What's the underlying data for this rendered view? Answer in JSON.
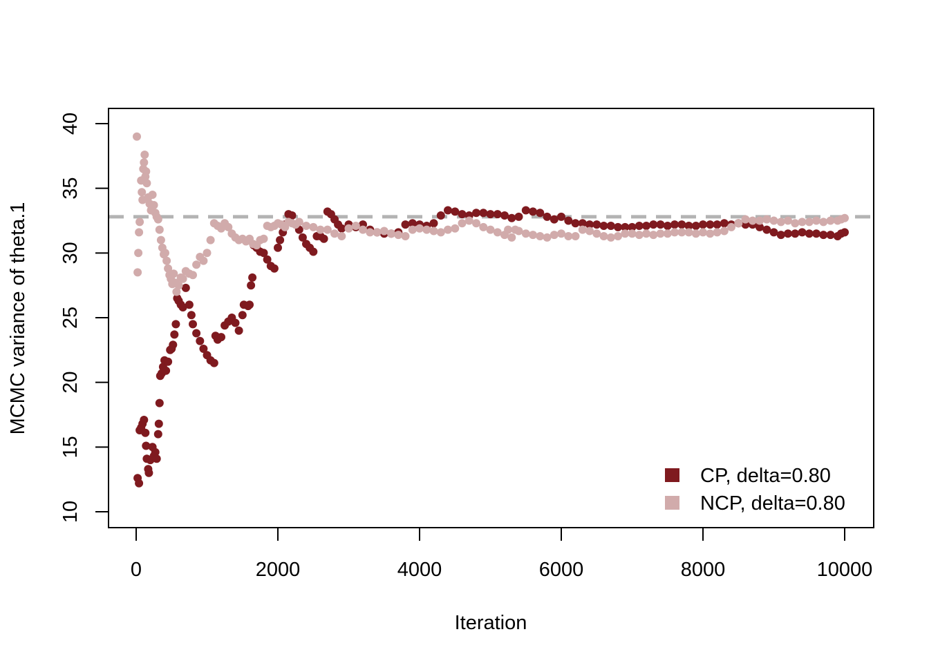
{
  "chart_data": {
    "type": "scatter",
    "title": "",
    "xlabel": "Iteration",
    "ylabel": "MCMC variance of theta.1",
    "xlim": [
      0,
      10000
    ],
    "ylim": [
      10,
      40
    ],
    "x_ticks": [
      "0",
      "2000",
      "4000",
      "6000",
      "8000",
      "10000"
    ],
    "y_ticks": [
      "10",
      "15",
      "20",
      "25",
      "30",
      "35",
      "40"
    ],
    "reference_line": {
      "y": 32.8,
      "style": "dashed",
      "color": "#b3b3b3"
    },
    "legend_position": "bottom-right",
    "grid": false,
    "series": [
      {
        "name": "CP, delta=0.80",
        "color": "#7f1a1f",
        "points": [
          [
            20,
            12.6
          ],
          [
            40,
            12.2
          ],
          [
            50,
            16.3
          ],
          [
            70,
            16.5
          ],
          [
            90,
            16.8
          ],
          [
            110,
            17.1
          ],
          [
            130,
            16.1
          ],
          [
            140,
            15.1
          ],
          [
            150,
            14.1
          ],
          [
            170,
            13.3
          ],
          [
            180,
            13.0
          ],
          [
            200,
            14.0
          ],
          [
            230,
            15.0
          ],
          [
            250,
            14.3
          ],
          [
            270,
            14.6
          ],
          [
            290,
            14.1
          ],
          [
            310,
            16.0
          ],
          [
            320,
            16.8
          ],
          [
            330,
            18.4
          ],
          [
            340,
            20.5
          ],
          [
            360,
            20.7
          ],
          [
            380,
            21.2
          ],
          [
            400,
            21.7
          ],
          [
            420,
            20.9
          ],
          [
            450,
            21.6
          ],
          [
            480,
            22.5
          ],
          [
            500,
            22.6
          ],
          [
            520,
            22.9
          ],
          [
            540,
            23.7
          ],
          [
            560,
            24.5
          ],
          [
            580,
            26.5
          ],
          [
            600,
            26.3
          ],
          [
            630,
            26.0
          ],
          [
            660,
            25.8
          ],
          [
            700,
            27.3
          ],
          [
            750,
            26.0
          ],
          [
            780,
            25.2
          ],
          [
            800,
            24.5
          ],
          [
            850,
            23.8
          ],
          [
            900,
            23.2
          ],
          [
            950,
            22.6
          ],
          [
            1000,
            22.1
          ],
          [
            1050,
            21.7
          ],
          [
            1100,
            21.5
          ],
          [
            1120,
            23.6
          ],
          [
            1150,
            23.3
          ],
          [
            1200,
            23.5
          ],
          [
            1250,
            24.4
          ],
          [
            1300,
            24.7
          ],
          [
            1350,
            25.0
          ],
          [
            1400,
            24.6
          ],
          [
            1450,
            24.0
          ],
          [
            1500,
            25.2
          ],
          [
            1520,
            26.0
          ],
          [
            1580,
            25.9
          ],
          [
            1600,
            26.0
          ],
          [
            1620,
            27.5
          ],
          [
            1640,
            28.1
          ],
          [
            1660,
            30.6
          ],
          [
            1700,
            30.4
          ],
          [
            1750,
            30.1
          ],
          [
            1800,
            30.0
          ],
          [
            1850,
            29.5
          ],
          [
            1900,
            29.0
          ],
          [
            1950,
            28.8
          ],
          [
            2000,
            30.4
          ],
          [
            2030,
            31.0
          ],
          [
            2070,
            31.6
          ],
          [
            2100,
            32.2
          ],
          [
            2150,
            33.0
          ],
          [
            2200,
            32.9
          ],
          [
            2250,
            32.2
          ],
          [
            2300,
            31.8
          ],
          [
            2350,
            31.2
          ],
          [
            2400,
            30.7
          ],
          [
            2450,
            30.4
          ],
          [
            2500,
            30.1
          ],
          [
            2550,
            31.3
          ],
          [
            2600,
            31.3
          ],
          [
            2650,
            31.1
          ],
          [
            2700,
            33.2
          ],
          [
            2750,
            33.0
          ],
          [
            2800,
            32.6
          ],
          [
            2850,
            32.2
          ],
          [
            2900,
            31.9
          ],
          [
            3000,
            32.2
          ],
          [
            3100,
            32.0
          ],
          [
            3200,
            32.2
          ],
          [
            3300,
            31.8
          ],
          [
            3400,
            31.6
          ],
          [
            3500,
            31.5
          ],
          [
            3600,
            31.5
          ],
          [
            3700,
            31.6
          ],
          [
            3800,
            32.2
          ],
          [
            3900,
            32.3
          ],
          [
            4000,
            32.2
          ],
          [
            4100,
            32.1
          ],
          [
            4200,
            32.3
          ],
          [
            4300,
            32.9
          ],
          [
            4400,
            33.3
          ],
          [
            4500,
            33.2
          ],
          [
            4600,
            33.0
          ],
          [
            4700,
            32.9
          ],
          [
            4800,
            33.1
          ],
          [
            4900,
            33.1
          ],
          [
            5000,
            33.0
          ],
          [
            5100,
            33.0
          ],
          [
            5200,
            32.9
          ],
          [
            5300,
            32.7
          ],
          [
            5400,
            32.8
          ],
          [
            5500,
            33.3
          ],
          [
            5600,
            33.2
          ],
          [
            5700,
            33.1
          ],
          [
            5800,
            32.8
          ],
          [
            5900,
            32.6
          ],
          [
            6000,
            32.8
          ],
          [
            6100,
            32.5
          ],
          [
            6200,
            32.3
          ],
          [
            6300,
            32.3
          ],
          [
            6400,
            32.2
          ],
          [
            6500,
            32.2
          ],
          [
            6600,
            32.1
          ],
          [
            6700,
            32.1
          ],
          [
            6800,
            32.0
          ],
          [
            6900,
            32.0
          ],
          [
            7000,
            32.0
          ],
          [
            7100,
            32.1
          ],
          [
            7200,
            32.1
          ],
          [
            7300,
            32.2
          ],
          [
            7400,
            32.2
          ],
          [
            7500,
            32.1
          ],
          [
            7600,
            32.2
          ],
          [
            7700,
            32.2
          ],
          [
            7800,
            32.1
          ],
          [
            7900,
            32.1
          ],
          [
            8000,
            32.2
          ],
          [
            8100,
            32.2
          ],
          [
            8200,
            32.2
          ],
          [
            8300,
            32.3
          ],
          [
            8400,
            32.2
          ],
          [
            8500,
            32.3
          ],
          [
            8600,
            32.2
          ],
          [
            8700,
            32.2
          ],
          [
            8800,
            32.0
          ],
          [
            8900,
            31.8
          ],
          [
            9000,
            31.6
          ],
          [
            9100,
            31.4
          ],
          [
            9200,
            31.5
          ],
          [
            9300,
            31.5
          ],
          [
            9400,
            31.6
          ],
          [
            9500,
            31.5
          ],
          [
            9600,
            31.5
          ],
          [
            9700,
            31.4
          ],
          [
            9800,
            31.4
          ],
          [
            9900,
            31.3
          ],
          [
            9950,
            31.5
          ],
          [
            10000,
            31.6
          ]
        ]
      },
      {
        "name": "NCP, delta=0.80",
        "color": "#d1abab",
        "points": [
          [
            10,
            39.0
          ],
          [
            20,
            28.5
          ],
          [
            30,
            30.0
          ],
          [
            40,
            31.6
          ],
          [
            50,
            32.4
          ],
          [
            70,
            35.6
          ],
          [
            80,
            34.7
          ],
          [
            90,
            34.1
          ],
          [
            100,
            36.5
          ],
          [
            110,
            37.0
          ],
          [
            120,
            37.6
          ],
          [
            130,
            35.9
          ],
          [
            140,
            36.3
          ],
          [
            150,
            35.4
          ],
          [
            170,
            34.3
          ],
          [
            190,
            33.8
          ],
          [
            210,
            33.3
          ],
          [
            230,
            34.5
          ],
          [
            250,
            33.7
          ],
          [
            270,
            33.1
          ],
          [
            290,
            32.8
          ],
          [
            310,
            32.6
          ],
          [
            330,
            31.8
          ],
          [
            350,
            31.0
          ],
          [
            370,
            30.4
          ],
          [
            390,
            29.9
          ],
          [
            410,
            30.0
          ],
          [
            430,
            29.4
          ],
          [
            450,
            28.8
          ],
          [
            470,
            28.3
          ],
          [
            490,
            28.0
          ],
          [
            510,
            27.6
          ],
          [
            530,
            28.4
          ],
          [
            550,
            27.7
          ],
          [
            570,
            27.0
          ],
          [
            600,
            27.5
          ],
          [
            630,
            28.1
          ],
          [
            660,
            28.0
          ],
          [
            700,
            28.6
          ],
          [
            750,
            28.4
          ],
          [
            800,
            28.3
          ],
          [
            850,
            29.1
          ],
          [
            900,
            29.7
          ],
          [
            950,
            29.4
          ],
          [
            1000,
            30.0
          ],
          [
            1050,
            31.0
          ],
          [
            1100,
            32.3
          ],
          [
            1150,
            32.1
          ],
          [
            1200,
            31.9
          ],
          [
            1250,
            32.3
          ],
          [
            1300,
            32.0
          ],
          [
            1350,
            31.5
          ],
          [
            1400,
            31.2
          ],
          [
            1450,
            31.0
          ],
          [
            1500,
            31.1
          ],
          [
            1550,
            30.9
          ],
          [
            1600,
            31.1
          ],
          [
            1650,
            30.7
          ],
          [
            1700,
            30.6
          ],
          [
            1750,
            31.0
          ],
          [
            1800,
            31.1
          ],
          [
            1850,
            32.1
          ],
          [
            1900,
            32.0
          ],
          [
            1950,
            32.1
          ],
          [
            2000,
            32.3
          ],
          [
            2050,
            32.2
          ],
          [
            2100,
            32.0
          ],
          [
            2150,
            32.4
          ],
          [
            2200,
            32.3
          ],
          [
            2250,
            32.2
          ],
          [
            2300,
            32.4
          ],
          [
            2400,
            32.1
          ],
          [
            2500,
            32.0
          ],
          [
            2600,
            31.8
          ],
          [
            2700,
            31.8
          ],
          [
            2800,
            31.5
          ],
          [
            2900,
            31.3
          ],
          [
            3000,
            31.9
          ],
          [
            3100,
            32.1
          ],
          [
            3200,
            31.8
          ],
          [
            3300,
            31.6
          ],
          [
            3400,
            31.6
          ],
          [
            3500,
            31.7
          ],
          [
            3600,
            31.5
          ],
          [
            3700,
            31.4
          ],
          [
            3800,
            31.3
          ],
          [
            3900,
            31.8
          ],
          [
            4000,
            31.9
          ],
          [
            4100,
            31.8
          ],
          [
            4200,
            31.7
          ],
          [
            4300,
            31.6
          ],
          [
            4400,
            31.8
          ],
          [
            4500,
            31.9
          ],
          [
            4600,
            32.3
          ],
          [
            4700,
            32.5
          ],
          [
            4800,
            32.3
          ],
          [
            4900,
            32.0
          ],
          [
            5000,
            31.8
          ],
          [
            5100,
            31.6
          ],
          [
            5200,
            31.4
          ],
          [
            5300,
            31.2
          ],
          [
            5250,
            31.8
          ],
          [
            5350,
            31.8
          ],
          [
            5400,
            31.7
          ],
          [
            5500,
            31.5
          ],
          [
            5600,
            31.4
          ],
          [
            5700,
            31.3
          ],
          [
            5800,
            31.2
          ],
          [
            5900,
            31.4
          ],
          [
            6000,
            31.5
          ],
          [
            6100,
            31.3
          ],
          [
            6200,
            31.3
          ],
          [
            6300,
            31.8
          ],
          [
            6400,
            31.7
          ],
          [
            6500,
            31.5
          ],
          [
            6600,
            31.3
          ],
          [
            6700,
            31.2
          ],
          [
            6800,
            31.3
          ],
          [
            6900,
            31.5
          ],
          [
            7000,
            31.5
          ],
          [
            7100,
            31.4
          ],
          [
            7200,
            31.5
          ],
          [
            7300,
            31.4
          ],
          [
            7400,
            31.5
          ],
          [
            7500,
            31.5
          ],
          [
            7600,
            31.6
          ],
          [
            7700,
            31.6
          ],
          [
            7800,
            31.6
          ],
          [
            7900,
            31.5
          ],
          [
            8000,
            31.6
          ],
          [
            8100,
            31.5
          ],
          [
            8200,
            31.6
          ],
          [
            8300,
            31.7
          ],
          [
            8400,
            32.0
          ],
          [
            8500,
            32.3
          ],
          [
            8600,
            32.6
          ],
          [
            8700,
            32.5
          ],
          [
            8800,
            32.5
          ],
          [
            8900,
            32.6
          ],
          [
            9000,
            32.5
          ],
          [
            9100,
            32.4
          ],
          [
            9200,
            32.5
          ],
          [
            9300,
            32.3
          ],
          [
            9400,
            32.4
          ],
          [
            9500,
            32.4
          ],
          [
            9600,
            32.5
          ],
          [
            9700,
            32.4
          ],
          [
            9800,
            32.5
          ],
          [
            9900,
            32.5
          ],
          [
            9950,
            32.6
          ],
          [
            10000,
            32.7
          ]
        ]
      }
    ]
  }
}
